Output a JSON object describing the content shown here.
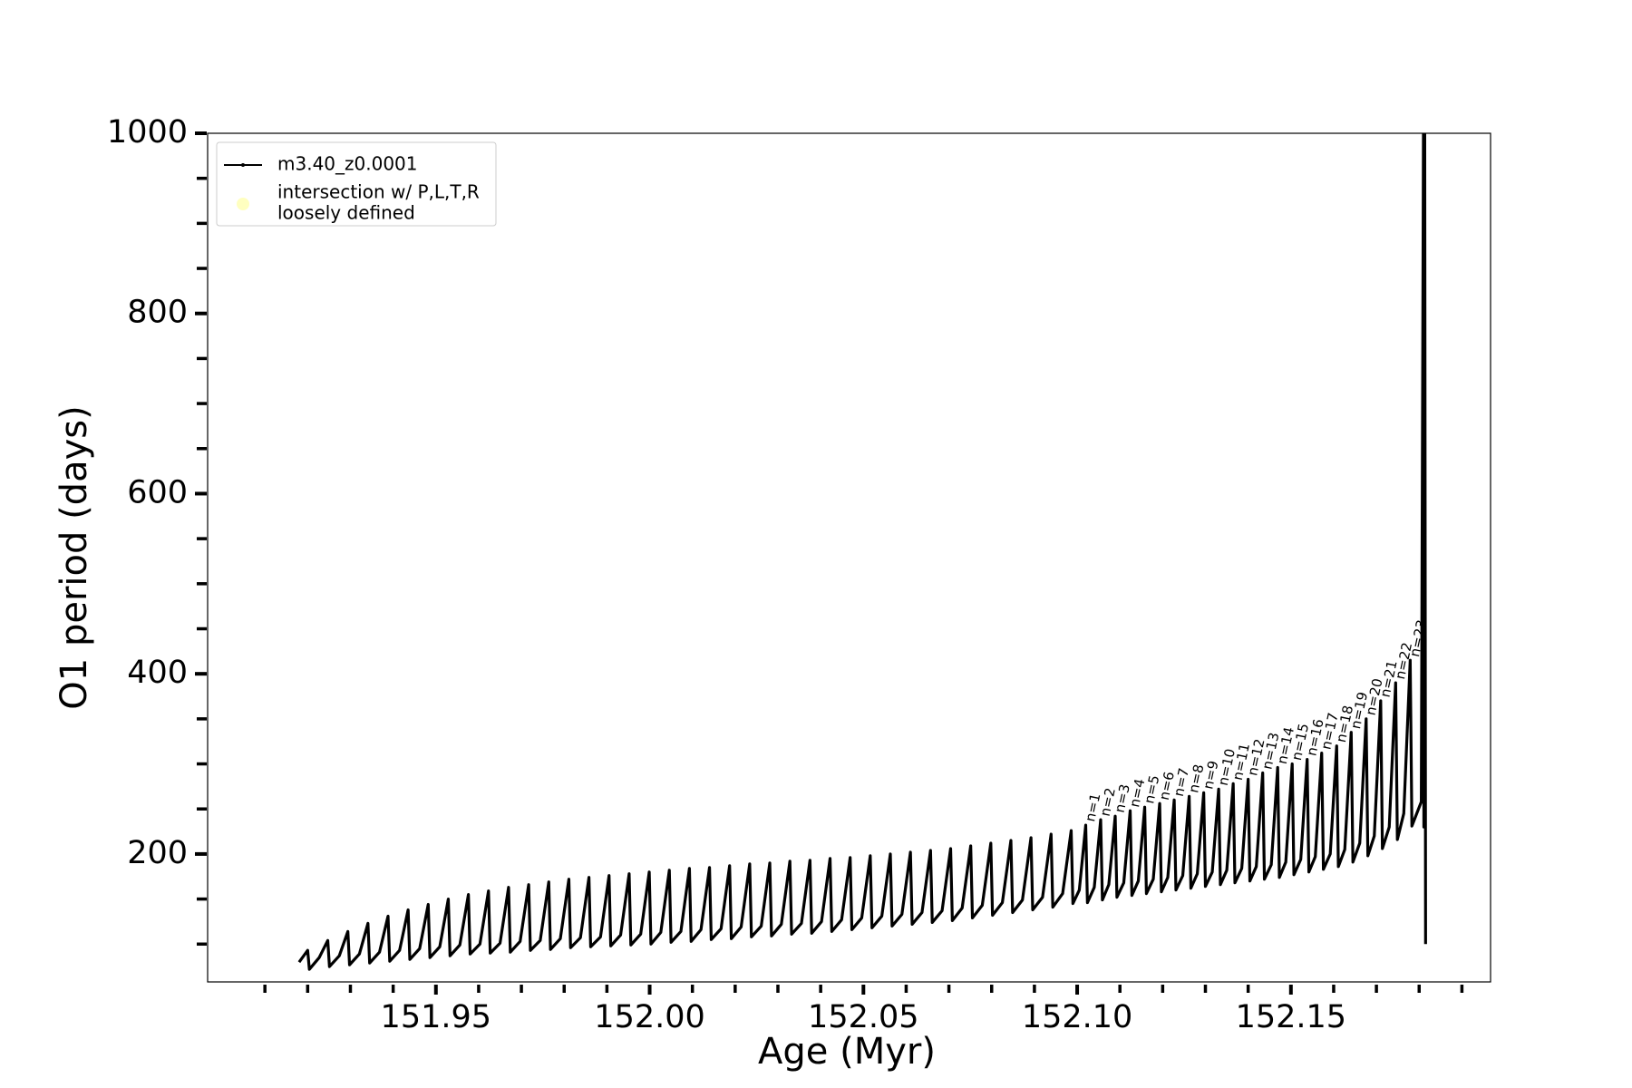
{
  "chart_data": {
    "type": "line",
    "xlabel": "Age (Myr)",
    "ylabel": "O1 period (days)",
    "xlim": [
      151.8966,
      152.1967
    ],
    "ylim": [
      58,
      1000
    ],
    "xticks": [
      151.95,
      {
        "value": 152,
        "label": "152.00"
      },
      152.05,
      {
        "value": 152.1,
        "label": "152.10"
      },
      152.15
    ],
    "xminor_ticks": [
      151.91,
      151.92,
      151.93,
      151.94,
      151.96,
      151.97,
      151.98,
      151.99,
      152.01,
      152.02,
      152.03,
      152.04,
      152.06,
      152.07,
      152.08,
      152.09,
      152.11,
      152.12,
      152.13,
      152.14,
      152.16,
      152.17,
      152.18,
      152.19
    ],
    "yticks": [
      200,
      400,
      600,
      800,
      1000
    ],
    "yminor_ticks": [
      100,
      150,
      250,
      300,
      350,
      450,
      500,
      550,
      650,
      700,
      750,
      850,
      900,
      950
    ],
    "legend_position": "upper left",
    "legend": [
      {
        "lines": [
          "m3.40_z0.0001"
        ],
        "color": "#000000",
        "marker": "line"
      },
      {
        "lines": [
          "intersection w/ P,L,T,R",
          "loosely defined"
        ],
        "color": "#ffffc0",
        "marker": "dot"
      }
    ],
    "series": [
      {
        "name": "m3.40_z0.0001",
        "color": "#000000",
        "x": [
          151.918,
          151.92,
          151.9204,
          151.9227,
          151.9247,
          151.9251,
          151.9274,
          151.9294,
          151.9298,
          151.9321,
          151.9341,
          151.9345,
          151.9368,
          151.9388,
          151.9392,
          151.9415,
          151.9435,
          151.9439,
          151.9462,
          151.9482,
          151.9486,
          151.9509,
          151.9529,
          151.9533,
          151.9556,
          151.9576,
          151.958,
          151.9603,
          151.9623,
          151.9627,
          151.965,
          151.967,
          151.9674,
          151.9697,
          151.9717,
          151.9721,
          151.9744,
          151.9764,
          151.9768,
          151.9791,
          151.9811,
          151.9815,
          151.9838,
          151.9858,
          151.9862,
          151.9885,
          151.9905,
          151.9909,
          151.9932,
          151.9952,
          151.9956,
          151.9979,
          151.9999,
          152.0003,
          152.0026,
          152.0046,
          152.005,
          152.0073,
          152.0093,
          152.0097,
          152.012,
          152.014,
          152.0144,
          152.0167,
          152.0187,
          152.0191,
          152.0214,
          152.0234,
          152.0238,
          152.0261,
          152.0281,
          152.0285,
          152.0308,
          152.0328,
          152.0332,
          152.0355,
          152.0375,
          152.0379,
          152.0402,
          152.0422,
          152.0426,
          152.0449,
          152.0469,
          152.0473,
          152.0496,
          152.0516,
          152.052,
          152.0543,
          152.0563,
          152.0567,
          152.059,
          152.061,
          152.0614,
          152.0637,
          152.0657,
          152.0661,
          152.0684,
          152.0704,
          152.0708,
          152.0731,
          152.0751,
          152.0755,
          152.0778,
          152.0798,
          152.0802,
          152.0825,
          152.0845,
          152.0849,
          152.0872,
          152.0892,
          152.0896,
          152.0919,
          152.0939,
          152.0943,
          152.0966,
          152.0986,
          152.099,
          152.1005,
          152.102,
          152.1024,
          152.104,
          152.1055,
          152.1059,
          152.1074,
          152.1089,
          152.1093,
          152.1109,
          152.1124,
          152.1128,
          152.1143,
          152.1158,
          152.1162,
          152.1178,
          152.1193,
          152.1197,
          152.1212,
          152.1227,
          152.1231,
          152.1247,
          152.1262,
          152.1266,
          152.1281,
          152.1296,
          152.13,
          152.1316,
          152.1331,
          152.1335,
          152.135,
          152.1365,
          152.1369,
          152.1385,
          152.14,
          152.1404,
          152.1419,
          152.1434,
          152.1438,
          152.1454,
          152.1469,
          152.1473,
          152.1488,
          152.1503,
          152.1507,
          152.1523,
          152.1538,
          152.1542,
          152.1557,
          152.1572,
          152.1576,
          152.1592,
          152.1607,
          152.1611,
          152.1626,
          152.1641,
          152.1645,
          152.1661,
          152.1676,
          152.168,
          152.1695,
          152.171,
          152.1714,
          152.173,
          152.1745,
          152.1749,
          152.1764,
          152.1779,
          152.1783,
          152.1805,
          152.181,
          152.1811,
          152.1813,
          152.1815
        ],
        "y": [
          80,
          93,
          72,
          85,
          104,
          75,
          87,
          114,
          77,
          89,
          123,
          79,
          91,
          131,
          81,
          93,
          138,
          83,
          95,
          144,
          85,
          97,
          150,
          87,
          99,
          155,
          89,
          100,
          159,
          90,
          101,
          163,
          91,
          103,
          166,
          93,
          104,
          169,
          94,
          106,
          172,
          96,
          107,
          174,
          97,
          108,
          176,
          98,
          110,
          178,
          99,
          111,
          180,
          100,
          113,
          182,
          102,
          114,
          184,
          103,
          116,
          185,
          105,
          117,
          187,
          106,
          119,
          189,
          108,
          120,
          190,
          109,
          122,
          192,
          111,
          123,
          193,
          112,
          125,
          195,
          114,
          127,
          196,
          116,
          129,
          198,
          118,
          131,
          200,
          120,
          133,
          202,
          122,
          135,
          204,
          124,
          137,
          206,
          126,
          140,
          209,
          129,
          143,
          212,
          132,
          146,
          215,
          135,
          149,
          218,
          138,
          152,
          222,
          141,
          156,
          226,
          145,
          160,
          232,
          146,
          163,
          238,
          149,
          166,
          242,
          152,
          168,
          248,
          154,
          170,
          252,
          156,
          172,
          256,
          158,
          174,
          260,
          160,
          176,
          264,
          162,
          178,
          268,
          164,
          180,
          272,
          166,
          182,
          278,
          168,
          184,
          283,
          170,
          186,
          290,
          172,
          188,
          296,
          174,
          191,
          300,
          177,
          194,
          305,
          180,
          197,
          312,
          183,
          200,
          320,
          186,
          205,
          335,
          191,
          212,
          350,
          198,
          220,
          370,
          206,
          230,
          390,
          216,
          245,
          415,
          231,
          258,
          1000,
          230,
          1000,
          100
        ]
      }
    ],
    "annotations": [
      {
        "text": "n=1",
        "x": 152.102,
        "y": 232
      },
      {
        "text": "n=2",
        "x": 152.1055,
        "y": 238
      },
      {
        "text": "n=3",
        "x": 152.1089,
        "y": 242
      },
      {
        "text": "n=4",
        "x": 152.1124,
        "y": 248
      },
      {
        "text": "n=5",
        "x": 152.1158,
        "y": 252
      },
      {
        "text": "n=6",
        "x": 152.1193,
        "y": 256
      },
      {
        "text": "n=7",
        "x": 152.1227,
        "y": 260
      },
      {
        "text": "n=8",
        "x": 152.1262,
        "y": 264
      },
      {
        "text": "n=9",
        "x": 152.1296,
        "y": 268
      },
      {
        "text": "n=10",
        "x": 152.1331,
        "y": 272
      },
      {
        "text": "n=11",
        "x": 152.1365,
        "y": 278
      },
      {
        "text": "n=12",
        "x": 152.14,
        "y": 283
      },
      {
        "text": "n=13",
        "x": 152.1434,
        "y": 290
      },
      {
        "text": "n=14",
        "x": 152.1469,
        "y": 296
      },
      {
        "text": "n=15",
        "x": 152.1503,
        "y": 300
      },
      {
        "text": "n=16",
        "x": 152.1538,
        "y": 305
      },
      {
        "text": "n=17",
        "x": 152.1572,
        "y": 312
      },
      {
        "text": "n=18",
        "x": 152.1607,
        "y": 320
      },
      {
        "text": "n=19",
        "x": 152.1641,
        "y": 335
      },
      {
        "text": "n=20",
        "x": 152.1676,
        "y": 350
      },
      {
        "text": "n=21",
        "x": 152.171,
        "y": 370
      },
      {
        "text": "n=22",
        "x": 152.1745,
        "y": 390
      },
      {
        "text": "n=23",
        "x": 152.1779,
        "y": 415
      }
    ]
  }
}
